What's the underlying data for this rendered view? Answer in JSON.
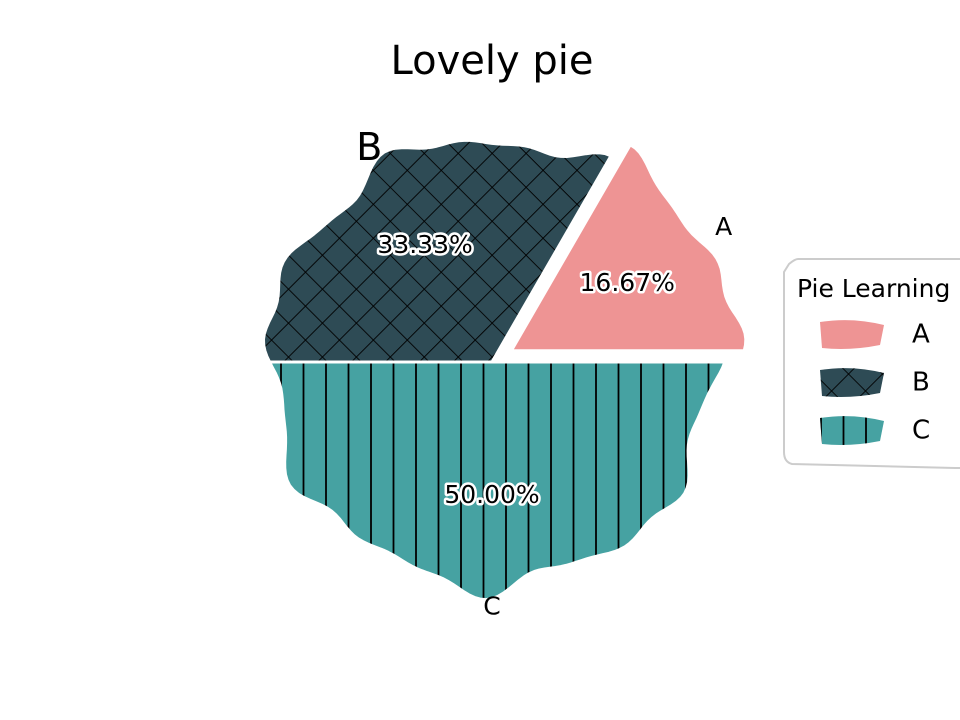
{
  "chart_data": {
    "type": "pie",
    "title": "Lovely pie",
    "categories": [
      "A",
      "B",
      "C"
    ],
    "values": [
      16.67,
      33.33,
      50.0
    ],
    "percent_labels": [
      "16.67%",
      "33.33%",
      "50.00%"
    ],
    "colors": [
      "#ee9494",
      "#2e4b55",
      "#46a2a2"
    ],
    "hatches": [
      "none",
      "crosshatch",
      "vertical"
    ],
    "explode": [
      0.1,
      0.0,
      0.0
    ],
    "start_angle_deg": 0,
    "legend": {
      "title": "Pie Learning",
      "entries": [
        "A",
        "B",
        "C"
      ],
      "placement": "right"
    }
  }
}
